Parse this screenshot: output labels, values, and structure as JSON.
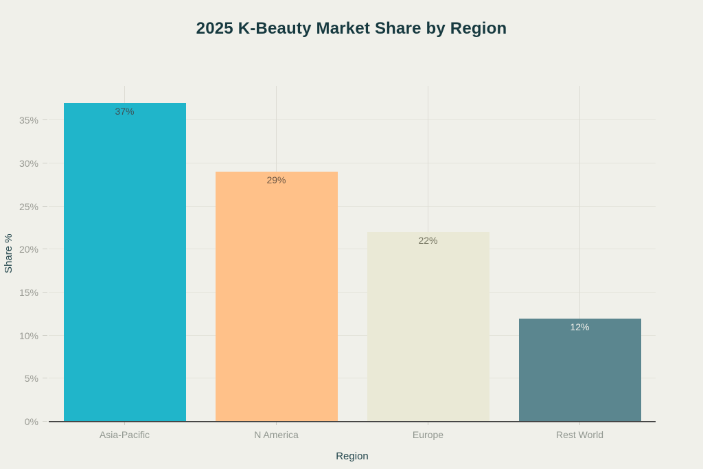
{
  "page": {
    "background_color": "#f0f0ea",
    "title_color": "#16393f",
    "axis_title_color": "#24474d",
    "tick_label_color": "#9a9b94"
  },
  "chart_data": {
    "type": "bar",
    "title": "2025 K-Beauty Market Share by Region",
    "xlabel": "Region",
    "ylabel": "Share %",
    "categories": [
      "Asia-Pacific",
      "N America",
      "Europe",
      "Rest World"
    ],
    "values": [
      37,
      29,
      22,
      12
    ],
    "value_labels": [
      "37%",
      "29%",
      "22%",
      "12%"
    ],
    "bar_colors": [
      "#20b5ca",
      "#ffc189",
      "#eae9d6",
      "#5b868f"
    ],
    "value_label_colors": [
      "#3d5056",
      "#6e5844",
      "#73735f",
      "#f0f0ea"
    ],
    "ylim": [
      0,
      39
    ],
    "yticks": [
      0,
      5,
      10,
      15,
      20,
      25,
      30,
      35
    ],
    "ytick_labels": [
      "0%",
      "5%",
      "10%",
      "15%",
      "20%",
      "25%",
      "30%",
      "35%"
    ],
    "grid": true,
    "legend": false
  }
}
